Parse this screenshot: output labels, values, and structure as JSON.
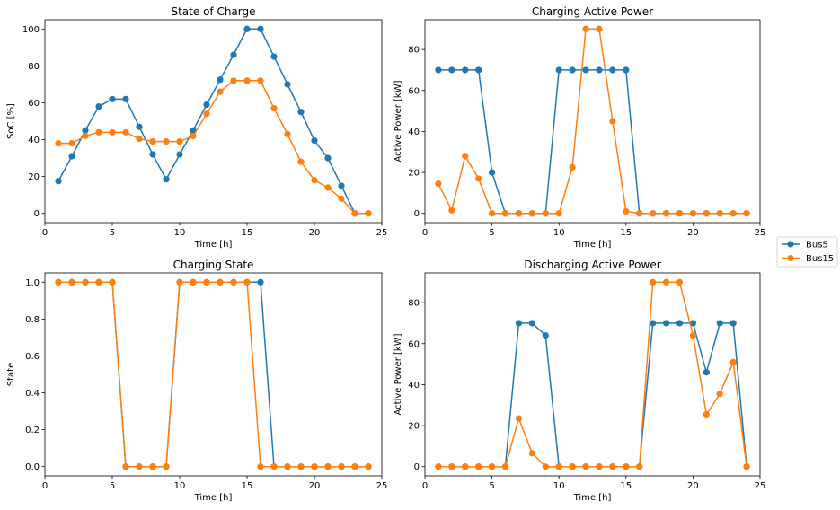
{
  "legend": {
    "entries": [
      {
        "name": "Bus5",
        "color": "#1f77b4"
      },
      {
        "name": "Bus15",
        "color": "#ff7f0e"
      }
    ]
  },
  "chart_data": [
    {
      "type": "line",
      "title": "State of Charge",
      "xlabel": "Time [h]",
      "ylabel": "SoC [%]",
      "xlim": [
        0,
        25
      ],
      "ylim": [
        -5,
        105
      ],
      "xticks": [
        0,
        5,
        10,
        15,
        20,
        25
      ],
      "yticks": [
        0,
        20,
        40,
        60,
        80,
        100
      ],
      "yticklabels": [
        "0",
        "20",
        "40",
        "60",
        "80",
        "100"
      ],
      "grid": false,
      "x": [
        1,
        2,
        3,
        4,
        5,
        6,
        7,
        8,
        9,
        10,
        11,
        12,
        13,
        14,
        15,
        16,
        17,
        18,
        19,
        20,
        21,
        22,
        23,
        24
      ],
      "series": [
        {
          "name": "Bus5",
          "color": "#1f77b4",
          "values": [
            17.5,
            31,
            45,
            58,
            62,
            62,
            47,
            32,
            18.5,
            32,
            45,
            59,
            72.5,
            86,
            100,
            100,
            85,
            70,
            55,
            39.5,
            30,
            15,
            0,
            0
          ]
        },
        {
          "name": "Bus15",
          "color": "#ff7f0e",
          "values": [
            38,
            38,
            42,
            44,
            44,
            44,
            40.5,
            39,
            39,
            39,
            42,
            54,
            66,
            72,
            72,
            72,
            57,
            43,
            28,
            18,
            14,
            8,
            0,
            0
          ]
        }
      ]
    },
    {
      "type": "line",
      "title": "Charging Active Power",
      "xlabel": "Time [h]",
      "ylabel": "Active Power [kW]",
      "xlim": [
        0,
        25
      ],
      "ylim": [
        -4.5,
        94.5
      ],
      "xticks": [
        0,
        5,
        10,
        15,
        20,
        25
      ],
      "yticks": [
        0,
        20,
        40,
        60,
        80
      ],
      "yticklabels": [
        "0",
        "20",
        "40",
        "60",
        "80"
      ],
      "grid": false,
      "x": [
        1,
        2,
        3,
        4,
        5,
        6,
        7,
        8,
        9,
        10,
        11,
        12,
        13,
        14,
        15,
        16,
        17,
        18,
        19,
        20,
        21,
        22,
        23,
        24
      ],
      "series": [
        {
          "name": "Bus5",
          "color": "#1f77b4",
          "values": [
            70,
            70,
            70,
            70,
            20,
            0,
            0,
            0,
            0,
            70,
            70,
            70,
            70,
            70,
            70,
            0,
            0,
            0,
            0,
            0,
            0,
            0,
            0,
            0
          ]
        },
        {
          "name": "Bus15",
          "color": "#ff7f0e",
          "values": [
            14.5,
            1.5,
            28,
            17,
            0,
            0,
            0,
            0,
            0,
            0,
            22.5,
            90,
            90,
            45,
            1,
            0,
            0,
            0,
            0,
            0,
            0,
            0,
            0,
            0
          ]
        }
      ]
    },
    {
      "type": "line",
      "title": "Charging State",
      "xlabel": "Time [h]",
      "ylabel": "State",
      "xlim": [
        0,
        25
      ],
      "ylim": [
        -0.05,
        1.05
      ],
      "xticks": [
        0,
        5,
        10,
        15,
        20,
        25
      ],
      "yticks": [
        0,
        0.2,
        0.4,
        0.6,
        0.8,
        1.0
      ],
      "yticklabels": [
        "0.0",
        "0.2",
        "0.4",
        "0.6",
        "0.8",
        "1.0"
      ],
      "grid": false,
      "x": [
        1,
        2,
        3,
        4,
        5,
        6,
        7,
        8,
        9,
        10,
        11,
        12,
        13,
        14,
        15,
        16,
        17,
        18,
        19,
        20,
        21,
        22,
        23,
        24
      ],
      "series": [
        {
          "name": "Bus5",
          "color": "#1f77b4",
          "values": [
            1,
            1,
            1,
            1,
            1,
            0,
            0,
            0,
            0,
            1,
            1,
            1,
            1,
            1,
            1,
            1,
            0,
            0,
            0,
            0,
            0,
            0,
            0,
            0
          ]
        },
        {
          "name": "Bus15",
          "color": "#ff7f0e",
          "values": [
            1,
            1,
            1,
            1,
            1,
            0,
            0,
            0,
            0,
            1,
            1,
            1,
            1,
            1,
            1,
            0,
            0,
            0,
            0,
            0,
            0,
            0,
            0,
            0
          ]
        }
      ]
    },
    {
      "type": "line",
      "title": "Discharging Active Power",
      "xlabel": "Time [h]",
      "ylabel": "Active Power [kW]",
      "xlim": [
        0,
        25
      ],
      "ylim": [
        -4.5,
        94.5
      ],
      "xticks": [
        0,
        5,
        10,
        15,
        20,
        25
      ],
      "yticks": [
        0,
        20,
        40,
        60,
        80
      ],
      "yticklabels": [
        "0",
        "20",
        "40",
        "60",
        "80"
      ],
      "grid": false,
      "x": [
        1,
        2,
        3,
        4,
        5,
        6,
        7,
        8,
        9,
        10,
        11,
        12,
        13,
        14,
        15,
        16,
        17,
        18,
        19,
        20,
        21,
        22,
        23,
        24
      ],
      "series": [
        {
          "name": "Bus5",
          "color": "#1f77b4",
          "values": [
            0,
            0,
            0,
            0,
            0,
            0,
            70,
            70,
            64,
            0,
            0,
            0,
            0,
            0,
            0,
            0,
            70,
            70,
            70,
            70,
            46,
            70,
            70,
            0
          ]
        },
        {
          "name": "Bus15",
          "color": "#ff7f0e",
          "values": [
            0,
            0,
            0,
            0,
            0,
            0,
            23.5,
            6.5,
            0,
            0,
            0,
            0,
            0,
            0,
            0,
            0,
            90,
            90,
            90,
            64,
            25.5,
            35.5,
            51,
            0
          ]
        }
      ]
    }
  ]
}
